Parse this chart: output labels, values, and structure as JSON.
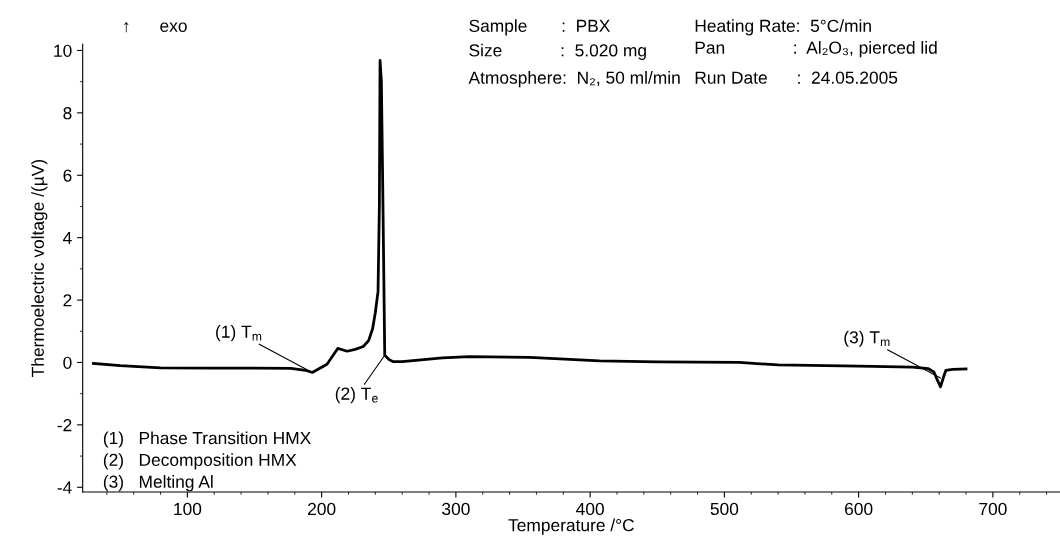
{
  "chart_data": {
    "type": "line",
    "xlabel": "Temperature /°C",
    "ylabel": "Thermoelectric voltage /(µV)",
    "xlim": [
      22,
      750
    ],
    "xticks": [
      100,
      200,
      300,
      400,
      500,
      600,
      700
    ],
    "ylim": [
      -4.15,
      10.2
    ],
    "yticks": [
      -4,
      -2,
      0,
      2,
      4,
      6,
      8,
      10
    ],
    "grid": false,
    "legend": false,
    "marker": "none",
    "line_style": "solid",
    "series": [
      {
        "color": "#000000",
        "x": [
          30,
          50,
          80,
          120,
          150,
          177,
          188,
          193,
          198,
          204,
          212,
          219,
          225,
          231,
          235,
          238,
          240,
          242,
          243,
          243.5,
          244.5,
          245.7,
          247,
          250,
          253,
          260,
          266,
          290,
          310,
          355,
          407,
          450,
          511,
          540,
          600,
          640,
          652,
          656,
          658,
          661,
          663,
          665,
          670,
          680
        ],
        "values": [
          -0.03,
          -0.1,
          -0.17,
          -0.18,
          -0.18,
          -0.19,
          -0.25,
          -0.32,
          -0.2,
          -0.06,
          0.45,
          0.36,
          0.42,
          0.51,
          0.7,
          1.09,
          1.6,
          2.27,
          5.0,
          9.68,
          9.0,
          5.0,
          0.23,
          0.1,
          0.03,
          0.03,
          0.05,
          0.15,
          0.19,
          0.16,
          0.05,
          0.02,
          0.0,
          -0.08,
          -0.12,
          -0.15,
          -0.2,
          -0.3,
          -0.5,
          -0.78,
          -0.5,
          -0.25,
          -0.22,
          -0.21
        ]
      }
    ],
    "annotations": [
      {
        "text": "(1) T$_{m}$",
        "x": 193,
        "y": -0.32
      },
      {
        "text": "(2) T$_{e}$",
        "x": 247,
        "y": 0.23
      },
      {
        "text": "(3) T$_{m}$",
        "x": 661,
        "y": -0.5
      },
      "↑      exo",
      "Sample       :  PBX",
      "Size            :  5.020 mg",
      "Atmosphere:  N₂, 50 ml/min",
      "Heating Rate:  5°C/min",
      "Pan              :  Al₂O₃, pierced lid",
      "Run Date      :  24.05.2005",
      "(1)   Phase Transition HMX",
      "(2)   Decomposition HMX",
      "(3)   Melting Al"
    ]
  }
}
